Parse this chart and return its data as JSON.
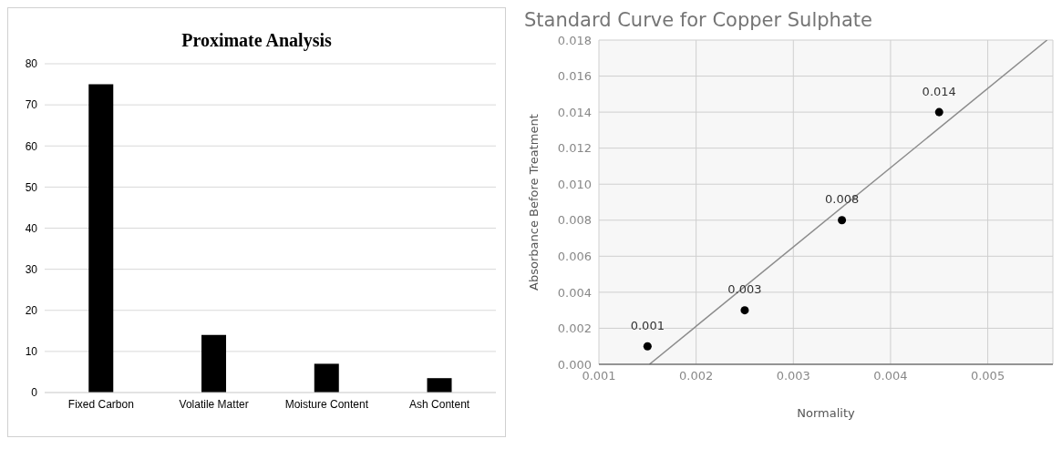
{
  "chart_data": [
    {
      "type": "bar",
      "title": "Proximate Analysis",
      "categories": [
        "Fixed Carbon",
        "Volatile Matter",
        "Moisture Content",
        "Ash Content"
      ],
      "values": [
        75,
        14,
        7,
        3.5
      ],
      "color": "#000000",
      "ylim": [
        0,
        80
      ],
      "yticks": [
        0,
        10,
        20,
        30,
        40,
        50,
        60,
        70,
        80
      ],
      "grid": "y"
    },
    {
      "type": "scatter",
      "title": "Standard Curve for Copper Sulphate",
      "xlabel": "Normality",
      "ylabel": "Absorbance Before Treatment",
      "series": [
        {
          "type": "scatter",
          "color": "#000000",
          "x": [
            0.0015,
            0.0025,
            0.0035,
            0.0045
          ],
          "values": [
            0.001,
            0.003,
            0.008,
            0.014
          ],
          "value_labels": [
            "0.001",
            "0.003",
            "0.008",
            "0.014"
          ],
          "marker": "circle"
        },
        {
          "type": "line",
          "color": "#8c8c8c",
          "x": [
            0.00152,
            0.00561
          ],
          "values": [
            0,
            0.018
          ]
        }
      ],
      "xlim": [
        0.001,
        0.00567
      ],
      "xticks": [
        0.001,
        0.002,
        0.003,
        0.004,
        0.005
      ],
      "ylim": [
        0,
        0.018
      ],
      "yticks": [
        {
          "value": 0,
          "label": "0.000"
        },
        0.002,
        0.004,
        0.006,
        0.008,
        {
          "value": 0.01,
          "label": "0.010"
        },
        0.012,
        0.014,
        0.016,
        0.018
      ],
      "grid": true
    }
  ]
}
